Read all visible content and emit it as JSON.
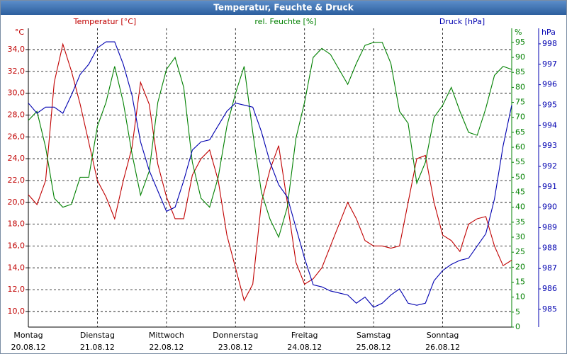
{
  "chart_data": {
    "type": "line",
    "title": "Temperatur, Feuchte & Druck",
    "x": [
      0,
      0.125,
      0.25,
      0.375,
      0.5,
      0.625,
      0.75,
      0.875,
      1,
      1.125,
      1.25,
      1.375,
      1.5,
      1.625,
      1.75,
      1.875,
      2,
      2.125,
      2.25,
      2.375,
      2.5,
      2.625,
      2.75,
      2.875,
      3,
      3.125,
      3.25,
      3.375,
      3.5,
      3.625,
      3.75,
      3.875,
      4,
      4.125,
      4.25,
      4.375,
      4.5,
      4.625,
      4.75,
      4.875,
      5,
      5.125,
      5.25,
      5.375,
      5.5,
      5.625,
      5.75,
      5.875,
      6,
      6.125,
      6.25,
      6.375,
      6.5,
      6.625,
      6.75,
      6.875,
      7
    ],
    "xlim": [
      0,
      7
    ],
    "xticks": [
      {
        "value": 0,
        "label": "Montag",
        "date": "20.08.12"
      },
      {
        "value": 1,
        "label": "Dienstag",
        "date": "21.08.12"
      },
      {
        "value": 2,
        "label": "Mittwoch",
        "date": "22.08.12"
      },
      {
        "value": 3,
        "label": "Donnerstag",
        "date": "23.08.12"
      },
      {
        "value": 4,
        "label": "Freitag",
        "date": "24.08.12"
      },
      {
        "value": 5,
        "label": "Samstag",
        "date": "25.08.12"
      },
      {
        "value": 6,
        "label": "Sonntag",
        "date": "26.08.12"
      }
    ],
    "series": [
      {
        "name": "Temperatur [°C]",
        "color": "#c00000",
        "axis": "y",
        "values": [
          20.7,
          19.8,
          22,
          31,
          34.5,
          32,
          29,
          25.5,
          22,
          20.5,
          18.5,
          22,
          25,
          31,
          29,
          23.5,
          20.5,
          18.5,
          18.5,
          22.5,
          24,
          24.8,
          22,
          17,
          14,
          11,
          12.5,
          20,
          23,
          25.2,
          20,
          14.5,
          12.5,
          13,
          14,
          16,
          18,
          20,
          18.5,
          16.5,
          16,
          16,
          15.8,
          16,
          20,
          24,
          24.3,
          20,
          17,
          16.5,
          15.5,
          18,
          18.5,
          18.7,
          16,
          14.2,
          14.7
        ]
      },
      {
        "name": "rel. Feuchte [%]",
        "color": "#008000",
        "axis": "y2",
        "values": [
          69,
          72,
          60,
          43,
          40,
          41,
          50,
          50,
          67,
          75,
          87,
          75,
          58,
          44,
          52,
          75,
          86,
          90,
          80,
          55,
          43,
          40,
          50,
          67,
          78,
          87,
          65,
          45,
          36,
          30,
          40,
          63,
          75,
          90,
          93,
          91,
          86,
          81,
          88,
          94,
          95,
          95,
          88,
          72,
          68,
          48,
          55,
          70,
          74,
          80,
          72,
          65,
          64,
          73,
          84,
          87,
          86
        ]
      },
      {
        "name": "Druck [hPa]",
        "color": "#0000b0",
        "axis": "y3",
        "values": [
          995.1,
          994.6,
          994.9,
          994.9,
          994.6,
          995.5,
          996.5,
          997,
          997.8,
          998.1,
          998.1,
          997,
          995.5,
          993.2,
          991.8,
          990.8,
          989.8,
          990,
          991.3,
          992.8,
          993.2,
          993.3,
          994,
          994.7,
          995.1,
          995,
          994.9,
          993.7,
          992.2,
          991.1,
          990.5,
          989,
          987.5,
          986.2,
          986.1,
          985.9,
          985.8,
          985.7,
          985.3,
          985.6,
          985.1,
          985.3,
          985.7,
          986,
          985.3,
          985.2,
          985.3,
          986.4,
          986.9,
          987.2,
          987.4,
          987.5,
          988.1,
          988.7,
          990.4,
          993,
          995
        ]
      }
    ],
    "y_unit": "°C",
    "ylim": [
      8.57,
      35.95
    ],
    "yticks": [
      {
        "value": 10,
        "label": "10,0"
      },
      {
        "value": 12,
        "label": "12,0"
      },
      {
        "value": 14,
        "label": "14,0"
      },
      {
        "value": 16,
        "label": "16,0"
      },
      {
        "value": 18,
        "label": "18,0"
      },
      {
        "value": 20,
        "label": "20,0"
      },
      {
        "value": 22,
        "label": "22,0"
      },
      {
        "value": 24,
        "label": "24,0"
      },
      {
        "value": 26,
        "label": "26,0"
      },
      {
        "value": 28,
        "label": "28,0"
      },
      {
        "value": 30,
        "label": "30,0"
      },
      {
        "value": 32,
        "label": "32,0"
      },
      {
        "value": 34,
        "label": "34,0"
      }
    ],
    "y2_unit": "%",
    "y2lim": [
      0,
      99.7
    ],
    "y2ticks": [
      0,
      5,
      10,
      15,
      20,
      25,
      30,
      35,
      40,
      45,
      50,
      55,
      60,
      65,
      70,
      75,
      80,
      85,
      90,
      95
    ],
    "y3_unit": "hPa",
    "y3lim": [
      984.13,
      998.76
    ],
    "y3ticks": [
      985,
      986,
      987,
      988,
      989,
      990,
      991,
      992,
      993,
      994,
      995,
      996,
      997,
      998
    ],
    "grid": true
  }
}
